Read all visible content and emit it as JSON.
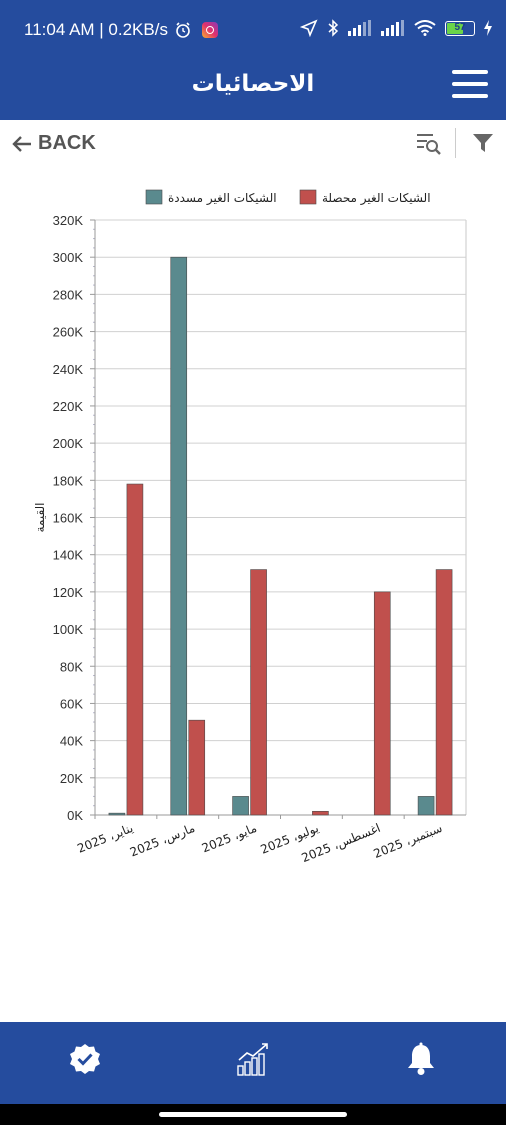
{
  "status_bar": {
    "time_speed": "11:04 AM | 0.2KB/s",
    "battery_level": "57"
  },
  "header": {
    "title": "الاحصائيات"
  },
  "toolbar": {
    "back_label": "BACK"
  },
  "colors": {
    "primary": "#254c9e",
    "series_unpaid": "#5a8a8e",
    "series_uncollected": "#c0504d"
  },
  "chart_data": {
    "type": "bar",
    "ylabel": "القيمة",
    "xlabel": "",
    "ylim": [
      0,
      320000
    ],
    "yticks": [
      "0K",
      "20K",
      "40K",
      "60K",
      "80K",
      "100K",
      "120K",
      "140K",
      "160K",
      "180K",
      "200K",
      "220K",
      "240K",
      "260K",
      "280K",
      "300K",
      "320K"
    ],
    "categories": [
      "يناير، 2025",
      "مارس، 2025",
      "مايو، 2025",
      "يوليو، 2025",
      "اغسطس، 2025",
      "سبتمبر، 2025"
    ],
    "legend_placement": "top",
    "series": [
      {
        "name": "الشيكات الغير مسددة",
        "color": "#5a8a8e",
        "values": [
          1000,
          300000,
          10000,
          0,
          0,
          10000
        ]
      },
      {
        "name": "الشيكات الغير محصلة",
        "color": "#c0504d",
        "values": [
          178000,
          51000,
          132000,
          2000,
          120000,
          132000
        ]
      }
    ]
  },
  "bottom_nav": {
    "items": [
      "approvals",
      "statistics",
      "notifications"
    ]
  }
}
